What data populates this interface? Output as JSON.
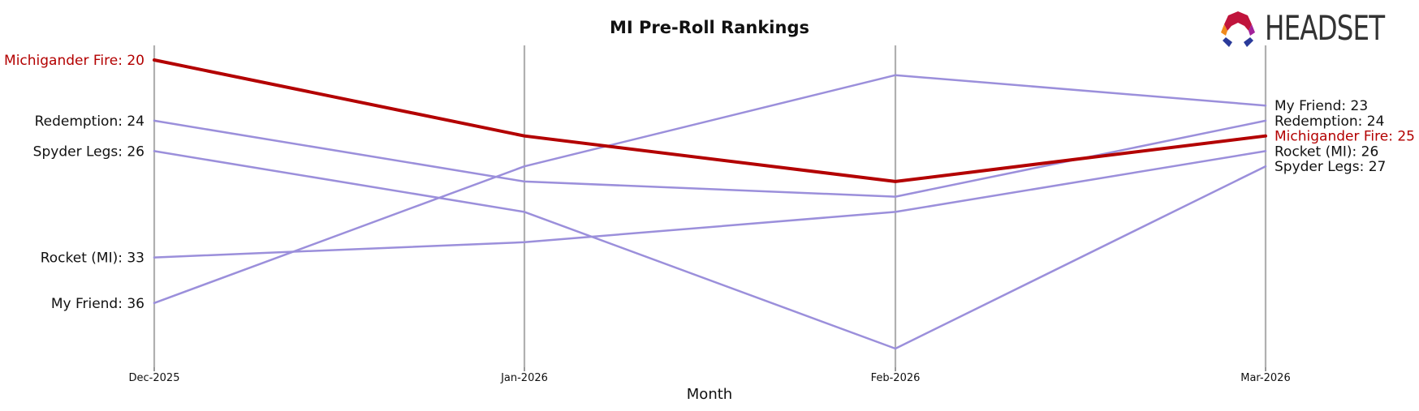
{
  "brand": {
    "logo_text": "HEADSET"
  },
  "chart_data": {
    "type": "line",
    "title": "MI Pre-Roll Rankings",
    "xlabel": "Month",
    "ylabel": "",
    "x": [
      "Dec-2025",
      "Jan-2026",
      "Feb-2026",
      "Mar-2026"
    ],
    "ylim": [
      40,
      20
    ],
    "y_inverted": true,
    "grid": "vertical lines at each month",
    "series": [
      {
        "name": "Michigander Fire",
        "values": [
          20,
          25,
          28,
          25
        ],
        "color": "#b30000",
        "highlight": true
      },
      {
        "name": "Redemption",
        "values": [
          24,
          28,
          29,
          24
        ],
        "color": "#9b8fdb",
        "highlight": false
      },
      {
        "name": "Spyder Legs",
        "values": [
          26,
          30,
          39,
          27
        ],
        "color": "#9b8fdb",
        "highlight": false
      },
      {
        "name": "Rocket (MI)",
        "values": [
          33,
          32,
          30,
          26
        ],
        "color": "#9b8fdb",
        "highlight": false
      },
      {
        "name": "My Friend",
        "values": [
          36,
          27,
          21,
          23
        ],
        "color": "#9b8fdb",
        "highlight": false
      }
    ],
    "left_labels": [
      {
        "text": "Michigander Fire: 20",
        "series": "Michigander Fire",
        "value": 20
      },
      {
        "text": "Redemption: 24",
        "series": "Redemption",
        "value": 24
      },
      {
        "text": "Spyder Legs: 26",
        "series": "Spyder Legs",
        "value": 26
      },
      {
        "text": "Rocket (MI): 33",
        "series": "Rocket (MI)",
        "value": 33
      },
      {
        "text": "My Friend: 36",
        "series": "My Friend",
        "value": 36
      }
    ],
    "right_labels": [
      {
        "text": "My Friend: 23",
        "series": "My Friend",
        "value": 23
      },
      {
        "text": "Redemption: 24",
        "series": "Redemption",
        "value": 24
      },
      {
        "text": "Michigander Fire: 25",
        "series": "Michigander Fire",
        "value": 25
      },
      {
        "text": "Rocket (MI): 26",
        "series": "Rocket (MI)",
        "value": 26
      },
      {
        "text": "Spyder Legs: 27",
        "series": "Spyder Legs",
        "value": 27
      }
    ]
  }
}
